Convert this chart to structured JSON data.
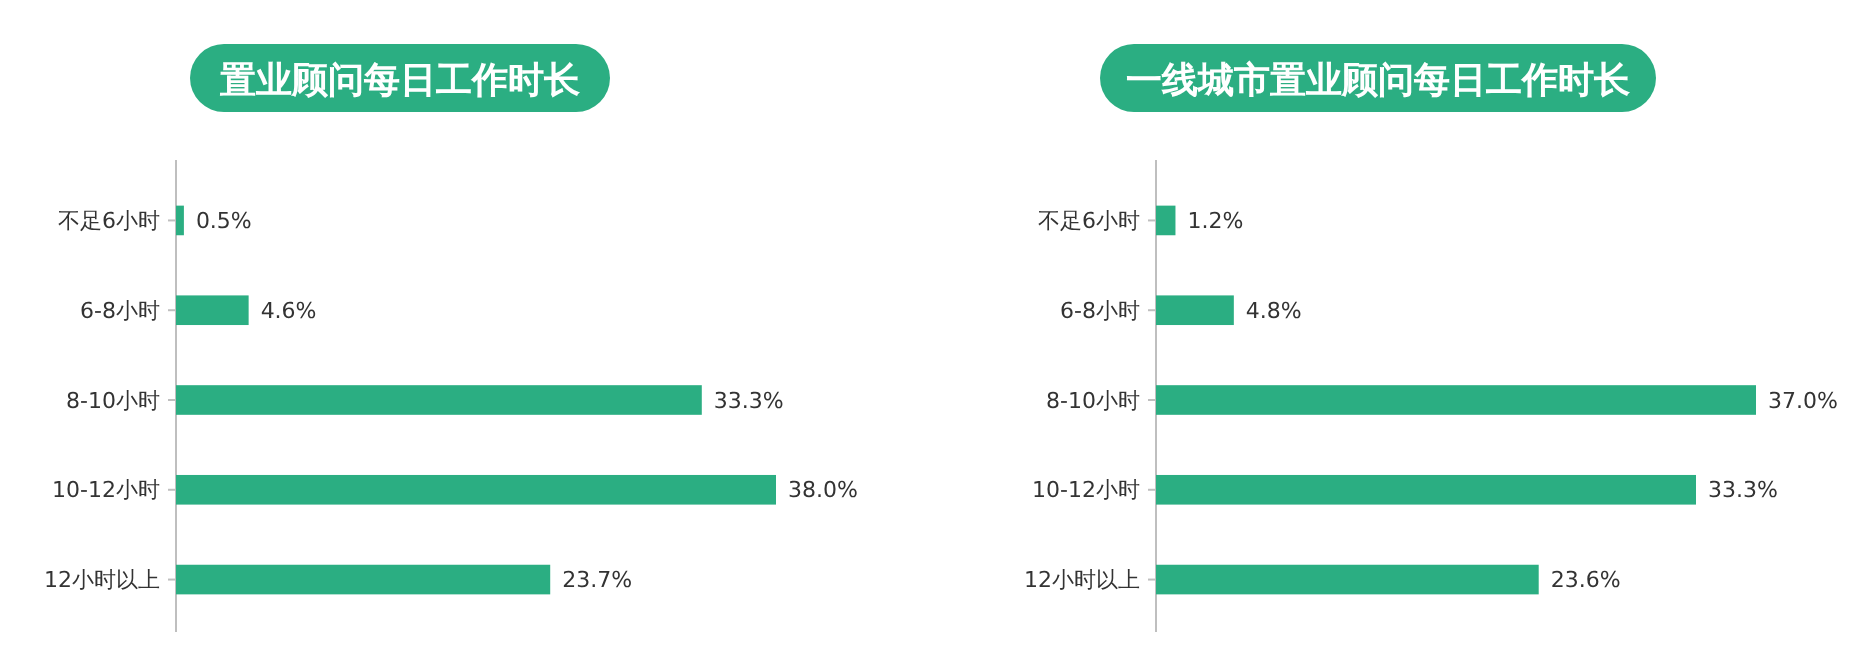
{
  "chart_data": [
    {
      "type": "bar",
      "orientation": "horizontal",
      "title": "置业顾问每日工作时长",
      "categories": [
        "不足6小时",
        "6-8小时",
        "8-10小时",
        "10-12小时",
        "12小时以上"
      ],
      "values": [
        0.5,
        4.6,
        33.3,
        38.0,
        23.7
      ],
      "value_labels": [
        "0.5%",
        "4.6%",
        "33.3%",
        "38.0%",
        "23.7%"
      ],
      "color": "#2bae82"
    },
    {
      "type": "bar",
      "orientation": "horizontal",
      "title": "一线城市置业顾问每日工作时长",
      "categories": [
        "不足6小时",
        "6-8小时",
        "8-10小时",
        "10-12小时",
        "12小时以上"
      ],
      "values": [
        1.2,
        4.8,
        37.0,
        33.3,
        23.6
      ],
      "value_labels": [
        "1.2%",
        "4.8%",
        "37.0%",
        "33.3%",
        "23.6%"
      ],
      "color": "#2bae82"
    }
  ]
}
